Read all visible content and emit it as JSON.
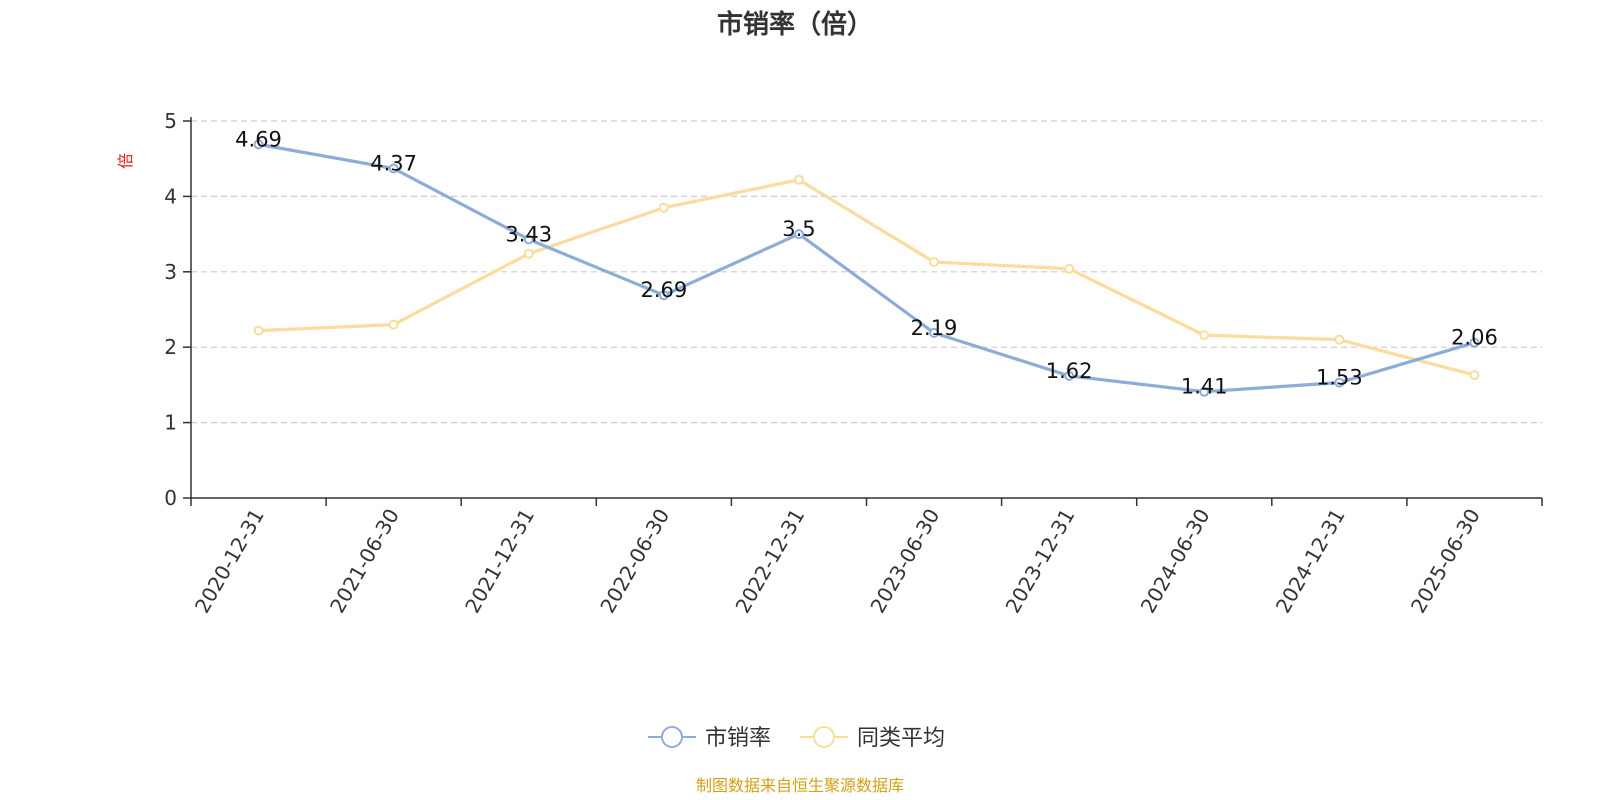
{
  "title": "市销率（倍）",
  "source": "制图数据来自恒生聚源数据库",
  "chart_data": {
    "type": "line",
    "title": "市销率（倍）",
    "ylabel": "倍",
    "ylim": [
      0,
      5
    ],
    "yticks": [
      0,
      1,
      2,
      3,
      4,
      5
    ],
    "grid": true,
    "legend_position": "bottom-center",
    "categories": [
      "2020-12-31",
      "2021-06-30",
      "2021-12-31",
      "2022-06-30",
      "2022-12-31",
      "2023-06-30",
      "2023-12-31",
      "2024-06-30",
      "2024-12-31",
      "2025-06-30"
    ],
    "series": [
      {
        "name": "市销率",
        "color": "#8eacd8",
        "values": [
          4.69,
          4.37,
          3.43,
          2.69,
          3.5,
          2.19,
          1.62,
          1.41,
          1.53,
          2.06
        ],
        "labels": [
          "4.69",
          "4.37",
          "3.43",
          "2.69",
          "3.5",
          "2.19",
          "1.62",
          "1.41",
          "1.53",
          "2.06"
        ]
      },
      {
        "name": "同类平均",
        "color": "#fbdc9e",
        "values": [
          2.22,
          2.3,
          3.24,
          3.85,
          4.22,
          3.13,
          3.04,
          2.16,
          2.1,
          1.63
        ]
      }
    ]
  }
}
